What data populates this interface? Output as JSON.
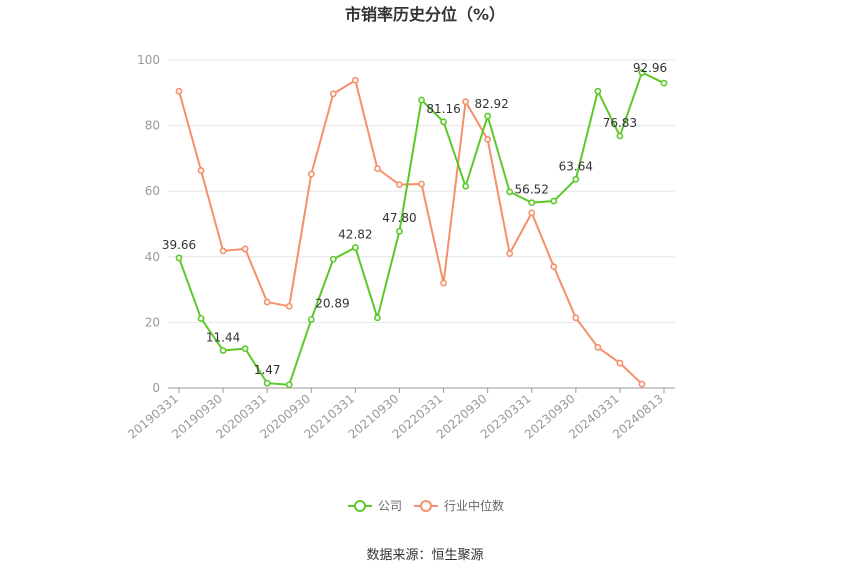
{
  "chart_data": {
    "type": "line",
    "title": "市销率历史分位（%）",
    "source": "数据来源：恒生聚源",
    "ylim": [
      0,
      100
    ],
    "yticks": [
      0,
      20,
      40,
      60,
      80,
      100
    ],
    "grid": true,
    "legend_position": "bottom",
    "x_labels": [
      "20190331",
      "20190930",
      "20200331",
      "20200930",
      "20210331",
      "20210930",
      "20220331",
      "20220930",
      "20230331",
      "20230930",
      "20240331",
      "20240813"
    ],
    "series": [
      {
        "name": "公司",
        "color": "#5cc928",
        "values": [
          39.66,
          21.2,
          11.44,
          12.0,
          1.47,
          1.0,
          20.89,
          39.3,
          42.82,
          21.4,
          47.8,
          87.8,
          81.16,
          61.5,
          82.92,
          59.8,
          56.52,
          57.0,
          63.64,
          90.5,
          76.83,
          96.2,
          92.96
        ],
        "data_labels": [
          {
            "index": 0,
            "text": "39.66"
          },
          {
            "index": 2,
            "text": "11.44"
          },
          {
            "index": 4,
            "text": "1.47"
          },
          {
            "index": 6,
            "text": "20.89"
          },
          {
            "index": 8,
            "text": "42.82"
          },
          {
            "index": 10,
            "text": "47.80"
          },
          {
            "index": 12,
            "text": "81.16"
          },
          {
            "index": 14,
            "text": "82.92"
          },
          {
            "index": 16,
            "text": "56.52"
          },
          {
            "index": 18,
            "text": "63.64"
          },
          {
            "index": 20,
            "text": "76.83"
          },
          {
            "index": 22,
            "text": "92.96"
          }
        ]
      },
      {
        "name": "行业中位数",
        "color": "#f5906a",
        "values": [
          90.5,
          66.3,
          41.8,
          42.4,
          26.2,
          24.9,
          65.2,
          89.7,
          93.8,
          66.9,
          62.0,
          62.2,
          32.0,
          87.3,
          75.8,
          41.0,
          53.4,
          37.0,
          21.4,
          12.4,
          7.6,
          1.2,
          null
        ]
      }
    ]
  }
}
